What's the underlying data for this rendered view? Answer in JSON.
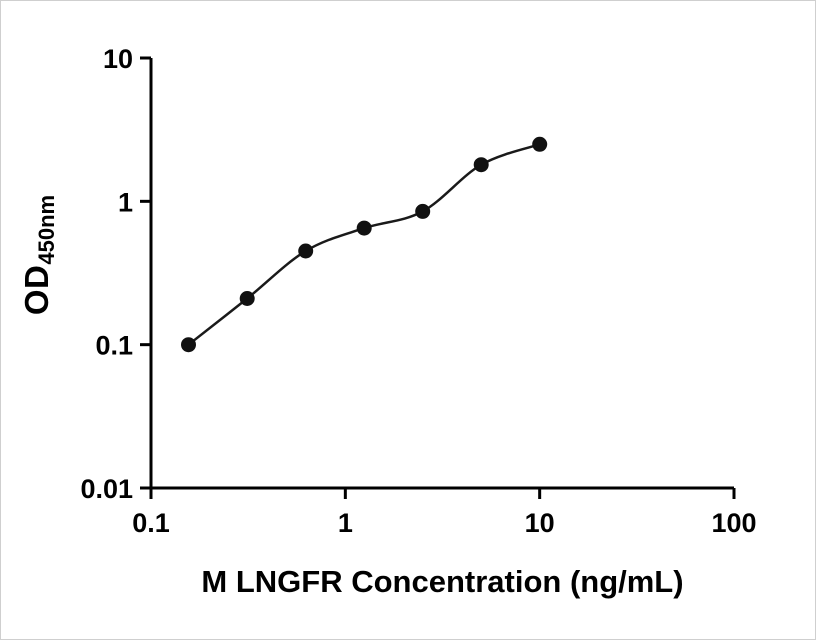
{
  "chart_data": {
    "type": "scatter",
    "title": "",
    "xlabel": "M LNGFR Concentration (ng/mL)",
    "ylabel": "OD450nm",
    "ylabel_main": "OD",
    "ylabel_sub": "450nm",
    "x_scale": "log",
    "y_scale": "log",
    "xlim": [
      0.1,
      100
    ],
    "ylim": [
      0.01,
      10
    ],
    "x_ticks": [
      0.1,
      1,
      10,
      100
    ],
    "y_ticks": [
      0.01,
      0.1,
      1,
      10
    ],
    "x_tick_labels": [
      "0.1",
      "1",
      "10",
      "100"
    ],
    "y_tick_labels": [
      "0.01",
      "0.1",
      "1",
      "10"
    ],
    "grid": false,
    "legend": false,
    "trendline": true,
    "axis_color": "#000000",
    "line_color": "#1a1a1a",
    "marker": {
      "shape": "circle",
      "color": "#111111",
      "size": 7.5
    },
    "points": [
      {
        "x": 0.156,
        "y": 0.1
      },
      {
        "x": 0.3125,
        "y": 0.21
      },
      {
        "x": 0.625,
        "y": 0.45
      },
      {
        "x": 1.25,
        "y": 0.65
      },
      {
        "x": 2.5,
        "y": 0.85
      },
      {
        "x": 5,
        "y": 1.8
      },
      {
        "x": 10,
        "y": 2.5
      }
    ]
  }
}
